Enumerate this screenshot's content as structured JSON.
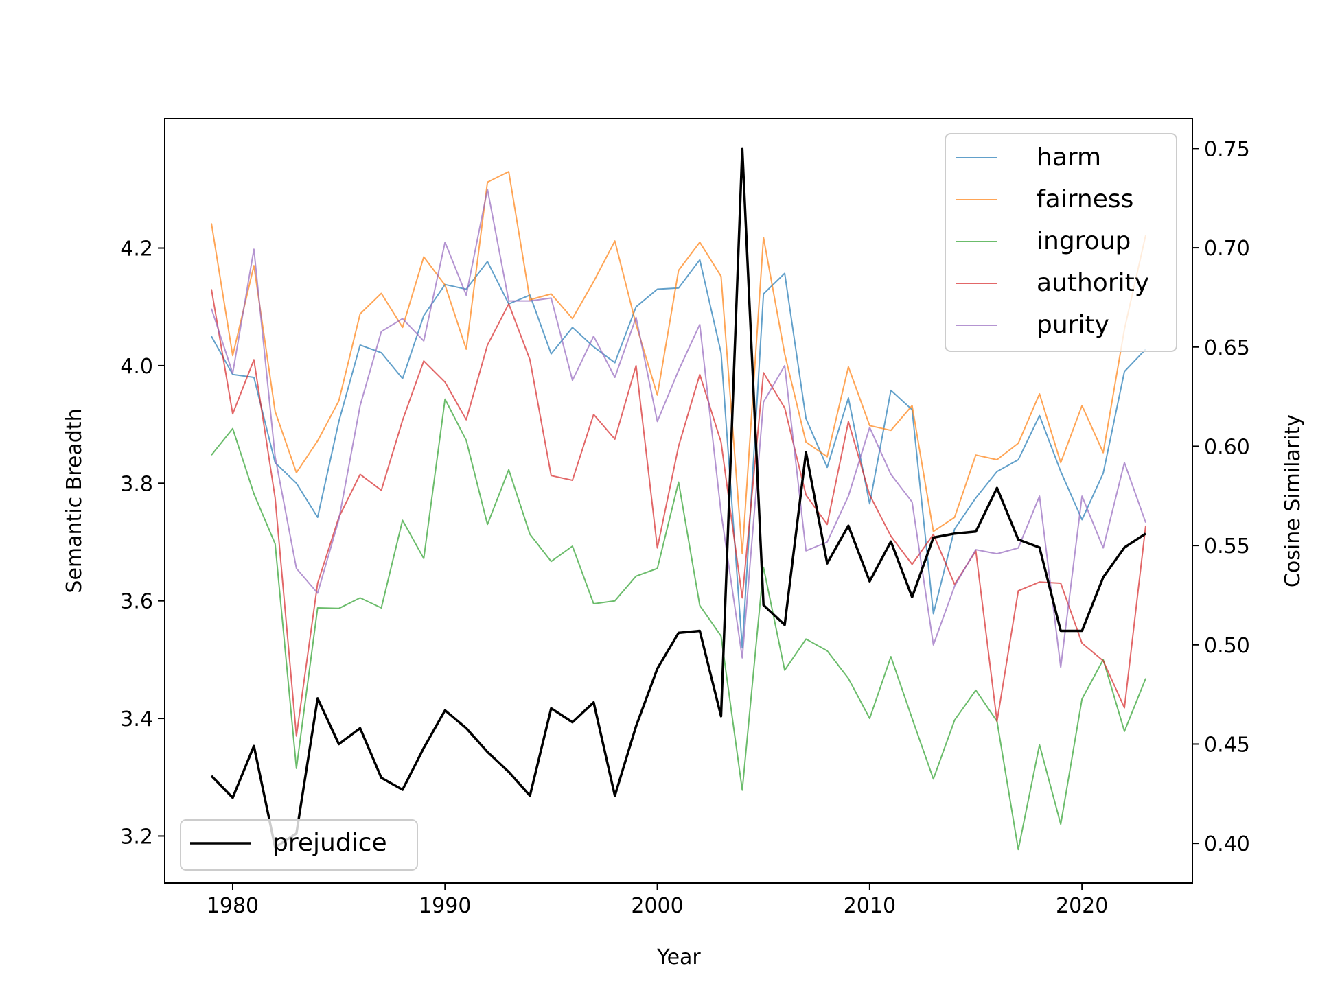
{
  "chart_data": {
    "type": "line",
    "title": "",
    "xlabel": "Year",
    "ylabel_left": "Semantic Breadth",
    "ylabel_right": "Cosine Similarity",
    "xlim": [
      1976.8,
      2025.2
    ],
    "ylim_left": [
      3.12,
      4.42
    ],
    "ylim_right": [
      0.38,
      0.765
    ],
    "xticks": [
      1980,
      1990,
      2000,
      2010,
      2020
    ],
    "xtick_labels": [
      "1980",
      "1990",
      "2000",
      "2010",
      "2020"
    ],
    "yticks_left": [
      3.2,
      3.4,
      3.6,
      3.8,
      4.0,
      4.2
    ],
    "ytick_labels_left": [
      "3.2",
      "3.4",
      "3.6",
      "3.8",
      "4.0",
      "4.2"
    ],
    "yticks_right": [
      0.4,
      0.45,
      0.5,
      0.55,
      0.6,
      0.65,
      0.7,
      0.75
    ],
    "ytick_labels_right": [
      "0.40",
      "0.45",
      "0.50",
      "0.55",
      "0.60",
      "0.65",
      "0.70",
      "0.75"
    ],
    "grid": false,
    "legend_left_axis_placement": "top-right",
    "legend_right_axis_placement": "bottom-left",
    "x": [
      1979,
      1980,
      1981,
      1982,
      1983,
      1984,
      1985,
      1986,
      1987,
      1988,
      1989,
      1990,
      1991,
      1992,
      1993,
      1994,
      1995,
      1996,
      1997,
      1998,
      1999,
      2000,
      2001,
      2002,
      2003,
      2004,
      2005,
      2006,
      2007,
      2008,
      2009,
      2010,
      2011,
      2012,
      2013,
      2014,
      2015,
      2016,
      2017,
      2018,
      2019,
      2020,
      2021,
      2022,
      2023
    ],
    "series_left": [
      {
        "name": "harm",
        "color": "#1f77b4",
        "values": [
          4.05,
          3.985,
          3.98,
          3.835,
          3.8,
          3.742,
          3.905,
          4.035,
          4.022,
          3.978,
          4.085,
          4.138,
          4.13,
          4.177,
          4.105,
          4.12,
          4.02,
          4.065,
          4.032,
          4.005,
          4.1,
          4.13,
          4.132,
          4.18,
          4.022,
          3.52,
          4.122,
          4.157,
          3.91,
          3.827,
          3.945,
          3.765,
          3.958,
          3.925,
          3.578,
          3.722,
          3.775,
          3.82,
          3.84,
          3.915,
          3.82,
          3.738,
          3.817,
          3.99,
          4.028
        ]
      },
      {
        "name": "fairness",
        "color": "#ff7f0e",
        "values": [
          4.242,
          4.017,
          4.17,
          3.922,
          3.818,
          3.872,
          3.94,
          4.088,
          4.123,
          4.065,
          4.185,
          4.137,
          4.028,
          4.312,
          4.33,
          4.112,
          4.122,
          4.08,
          4.143,
          4.212,
          4.07,
          3.95,
          4.162,
          4.21,
          4.152,
          3.68,
          4.218,
          4.02,
          3.87,
          3.845,
          3.998,
          3.898,
          3.89,
          3.932,
          3.718,
          3.742,
          3.848,
          3.84,
          3.868,
          3.952,
          3.835,
          3.932,
          3.852,
          4.062,
          4.222
        ]
      },
      {
        "name": "ingroup",
        "color": "#2ca02c",
        "values": [
          3.848,
          3.893,
          3.782,
          3.697,
          3.315,
          3.588,
          3.587,
          3.605,
          3.588,
          3.737,
          3.672,
          3.943,
          3.873,
          3.73,
          3.823,
          3.713,
          3.667,
          3.693,
          3.595,
          3.6,
          3.642,
          3.655,
          3.802,
          3.592,
          3.54,
          3.278,
          3.657,
          3.482,
          3.535,
          3.515,
          3.468,
          3.4,
          3.505,
          3.4,
          3.297,
          3.397,
          3.448,
          3.395,
          3.177,
          3.355,
          3.22,
          3.433,
          3.5,
          3.378,
          3.468
        ]
      },
      {
        "name": "authority",
        "color": "#d62728",
        "values": [
          4.13,
          3.918,
          4.01,
          3.775,
          3.37,
          3.63,
          3.742,
          3.815,
          3.788,
          3.907,
          4.008,
          3.972,
          3.908,
          4.035,
          4.105,
          4.01,
          3.813,
          3.805,
          3.917,
          3.875,
          4.0,
          3.69,
          3.863,
          3.985,
          3.87,
          3.605,
          3.988,
          3.928,
          3.78,
          3.73,
          3.905,
          3.78,
          3.71,
          3.662,
          3.713,
          3.628,
          3.685,
          3.395,
          3.617,
          3.632,
          3.63,
          3.528,
          3.498,
          3.418,
          3.728
        ]
      },
      {
        "name": "purity",
        "color": "#9467bd",
        "values": [
          4.097,
          3.987,
          4.198,
          3.845,
          3.655,
          3.613,
          3.738,
          3.932,
          4.058,
          4.08,
          4.042,
          4.21,
          4.12,
          4.3,
          4.11,
          4.11,
          4.115,
          3.975,
          4.05,
          3.98,
          4.082,
          3.905,
          3.992,
          4.07,
          3.75,
          3.503,
          3.938,
          4.0,
          3.685,
          3.7,
          3.778,
          3.895,
          3.815,
          3.768,
          3.525,
          3.625,
          3.687,
          3.68,
          3.69,
          3.778,
          3.487,
          3.778,
          3.69,
          3.835,
          3.733
        ]
      }
    ],
    "series_right": [
      {
        "name": "prejudice",
        "color": "#000000",
        "values": [
          0.434,
          0.423,
          0.449,
          0.398,
          0.405,
          0.473,
          0.45,
          0.458,
          0.433,
          0.427,
          0.448,
          0.467,
          0.458,
          0.446,
          0.436,
          0.424,
          0.468,
          0.461,
          0.471,
          0.424,
          0.459,
          0.488,
          0.506,
          0.507,
          0.464,
          0.75,
          0.52,
          0.51,
          0.597,
          0.541,
          0.56,
          0.532,
          0.552,
          0.524,
          0.554,
          0.556,
          0.557,
          0.579,
          0.553,
          0.549,
          0.507,
          0.507,
          0.534,
          0.549,
          0.556
        ]
      }
    ]
  }
}
